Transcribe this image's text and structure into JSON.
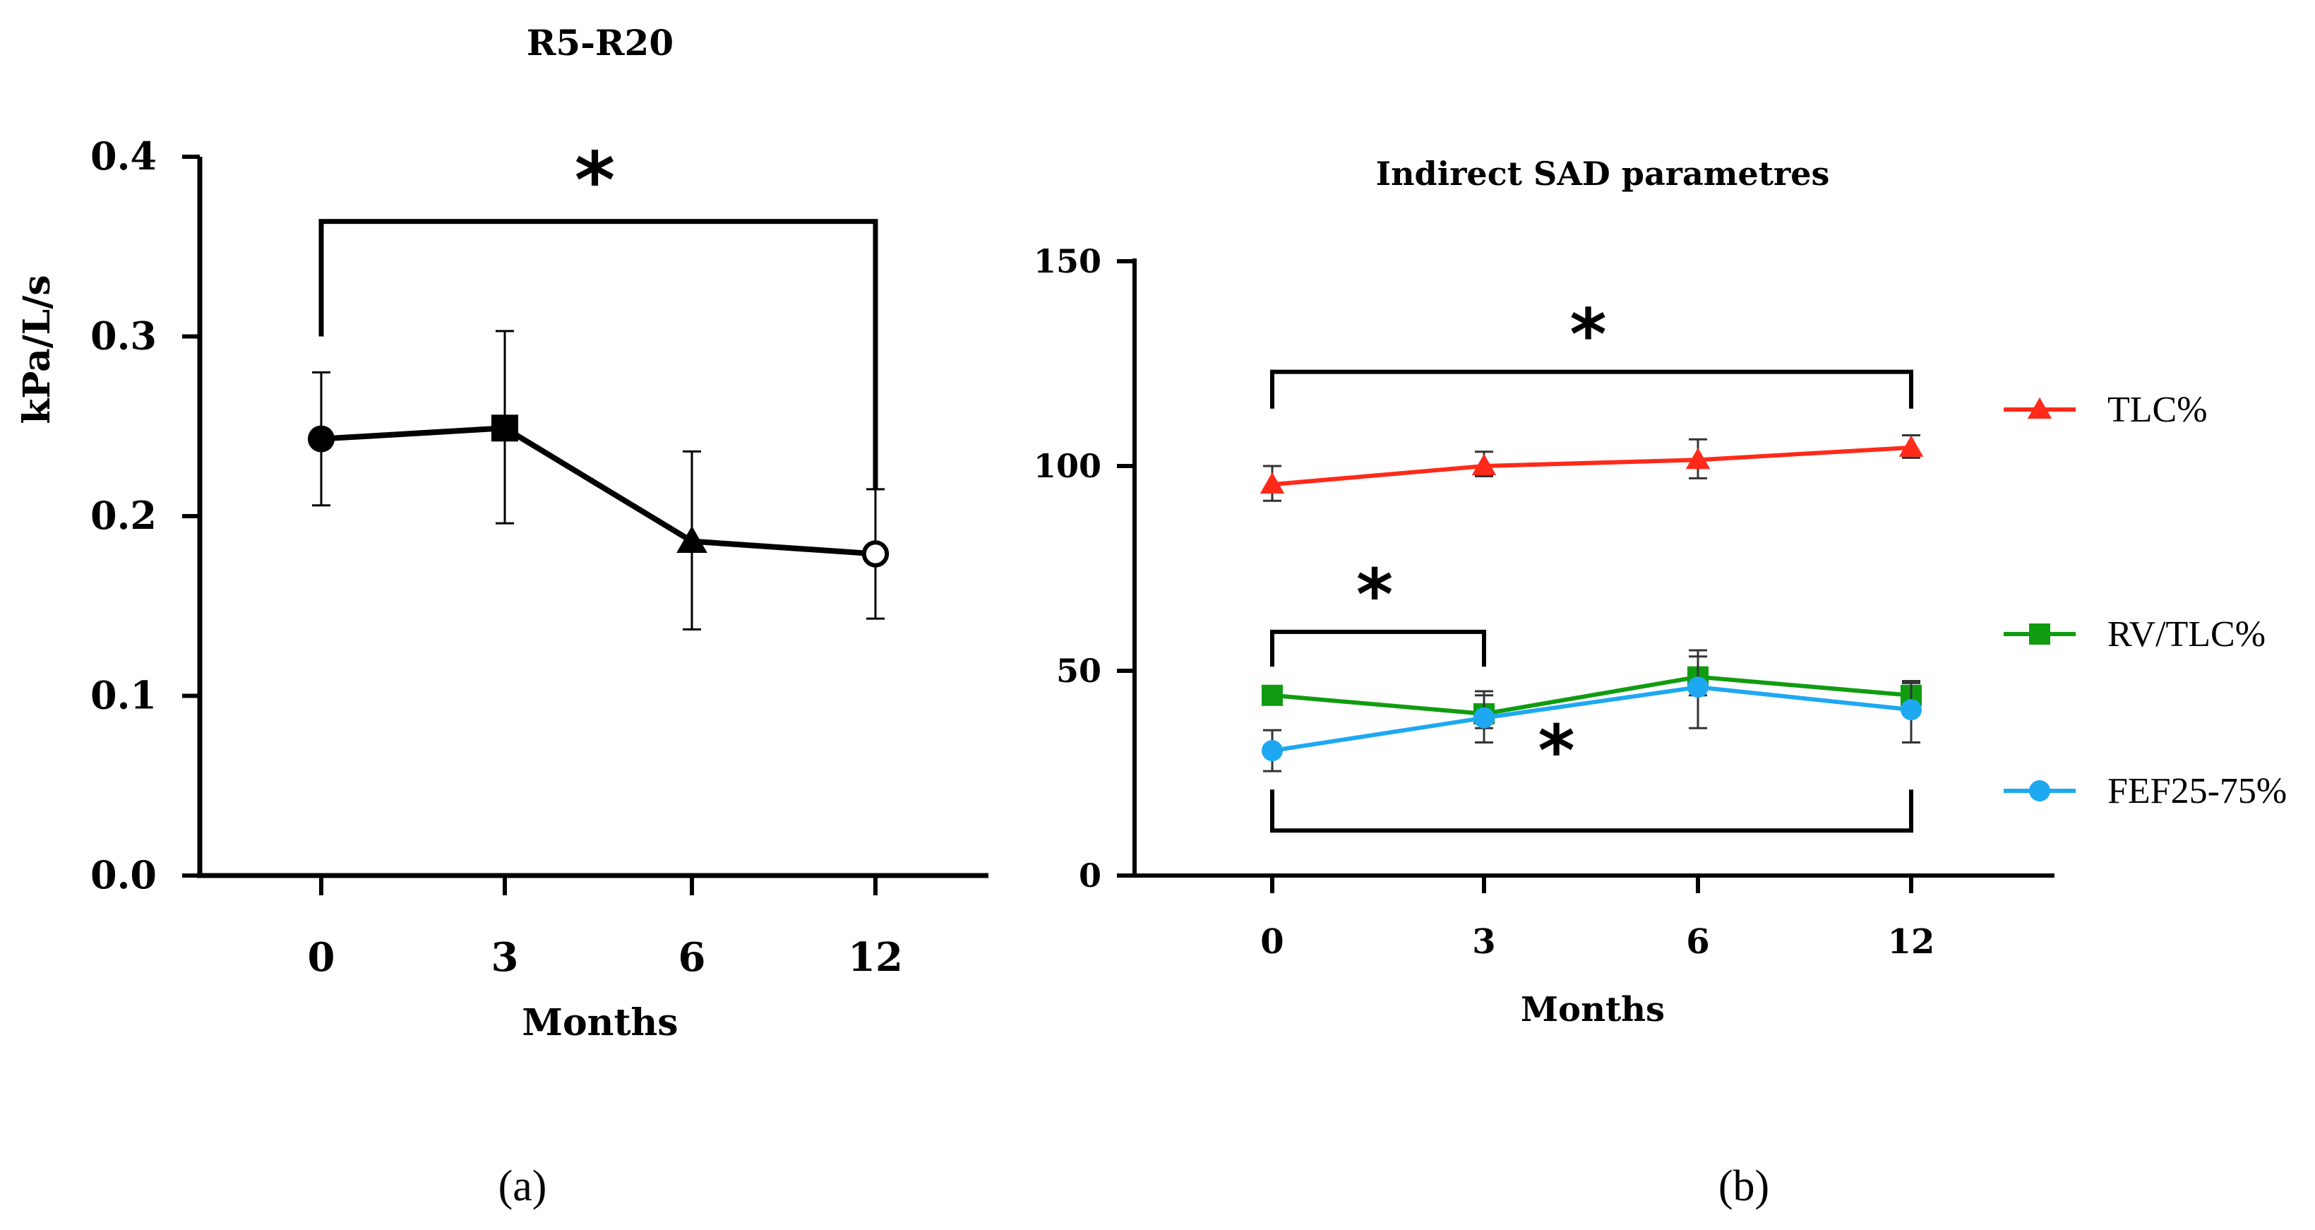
{
  "chart_data": [
    {
      "panel_label": "(a)",
      "type": "line",
      "title": "R5-R20",
      "xlabel": "Months",
      "ylabel": "kPa/L/s",
      "categories": [
        "0",
        "3",
        "6",
        "12"
      ],
      "ylim": [
        0,
        0.4
      ],
      "yticks": [
        "0.0",
        "0.1",
        "0.2",
        "0.3",
        "0.4"
      ],
      "ytick_values": [
        0,
        0.1,
        0.2,
        0.3,
        0.4
      ],
      "series": [
        {
          "name": "R5-R20",
          "color": "#000000",
          "markers": [
            "circle",
            "square",
            "triangle",
            "open-circle"
          ],
          "values": [
            0.243,
            0.249,
            0.186,
            0.179
          ],
          "err_low": [
            0.206,
            0.196,
            0.137,
            0.143
          ],
          "err_high": [
            0.28,
            0.303,
            0.236,
            0.215
          ]
        }
      ],
      "significance": [
        {
          "from": "0",
          "to": "12",
          "label": "*",
          "level": 0.364,
          "drop_left": 0.3,
          "drop_right": 0.215
        }
      ]
    },
    {
      "panel_label": "(b)",
      "type": "line",
      "title": "Indirect SAD parametres",
      "xlabel": "Months",
      "ylabel": "",
      "categories": [
        "0",
        "3",
        "6",
        "12"
      ],
      "ylim": [
        0,
        150
      ],
      "yticks": [
        "0",
        "50",
        "100",
        "150"
      ],
      "ytick_values": [
        0,
        50,
        100,
        150
      ],
      "legend_position": "right",
      "series": [
        {
          "name": "TLC%",
          "color": "#ff2a1a",
          "marker": "triangle",
          "values": [
            95.5,
            100,
            101.5,
            104.5
          ],
          "err_low": [
            91.5,
            97.5,
            97,
            102
          ],
          "err_high": [
            100,
            103.5,
            106.5,
            107.5
          ]
        },
        {
          "name": "RV/TLC%",
          "color": "#109c10",
          "marker": "square",
          "values": [
            44,
            39.5,
            48.5,
            44
          ],
          "err_low": [
            44,
            36,
            44,
            41
          ],
          "err_high": [
            44,
            45,
            55,
            47
          ]
        },
        {
          "name": "FEF25-75%",
          "color": "#1ea8f2",
          "marker": "circle",
          "values": [
            30.5,
            38.5,
            46,
            40.5
          ],
          "err_low": [
            25.5,
            32.5,
            36,
            32.5
          ],
          "err_high": [
            35.5,
            44,
            53.5,
            47.5
          ]
        }
      ],
      "significance": [
        {
          "from": "0",
          "to": "12",
          "label": "*",
          "level": 123,
          "drop": 114,
          "dir": "down"
        },
        {
          "from": "0",
          "to": "3",
          "label": "*",
          "level": 59.5,
          "drop": 51,
          "dir": "down"
        },
        {
          "from": "0",
          "to": "12",
          "label": "*",
          "level": 11,
          "drop": 21,
          "dir": "up"
        }
      ]
    }
  ]
}
